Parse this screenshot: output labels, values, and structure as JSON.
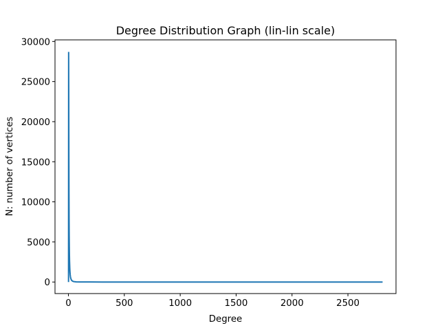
{
  "chart_data": {
    "type": "line",
    "title": "Degree Distribution Graph (lin-lin scale)",
    "xlabel": "Degree",
    "ylabel": "N: number of vertices",
    "xlim": [
      -120,
      2930
    ],
    "ylim": [
      -1440,
      30200
    ],
    "xticks": [
      0,
      500,
      1000,
      1500,
      2000,
      2500
    ],
    "yticks": [
      0,
      5000,
      10000,
      15000,
      20000,
      25000,
      30000
    ],
    "grid": false,
    "line_color": "#1f77b4",
    "series": [
      {
        "x": [
          1,
          2,
          3,
          4,
          5,
          6,
          7,
          8,
          9,
          10,
          12,
          14,
          16,
          18,
          20,
          25,
          30,
          40,
          50,
          70,
          100,
          150,
          200,
          300,
          500,
          800,
          1200,
          1600,
          2000,
          2400,
          2810
        ],
        "y": [
          0,
          28700,
          24000,
          16000,
          11000,
          7800,
          5800,
          4400,
          3400,
          2700,
          1800,
          1250,
          900,
          680,
          520,
          300,
          190,
          90,
          50,
          20,
          8,
          3,
          2,
          1,
          1,
          1,
          1,
          1,
          1,
          1,
          1
        ]
      }
    ]
  }
}
